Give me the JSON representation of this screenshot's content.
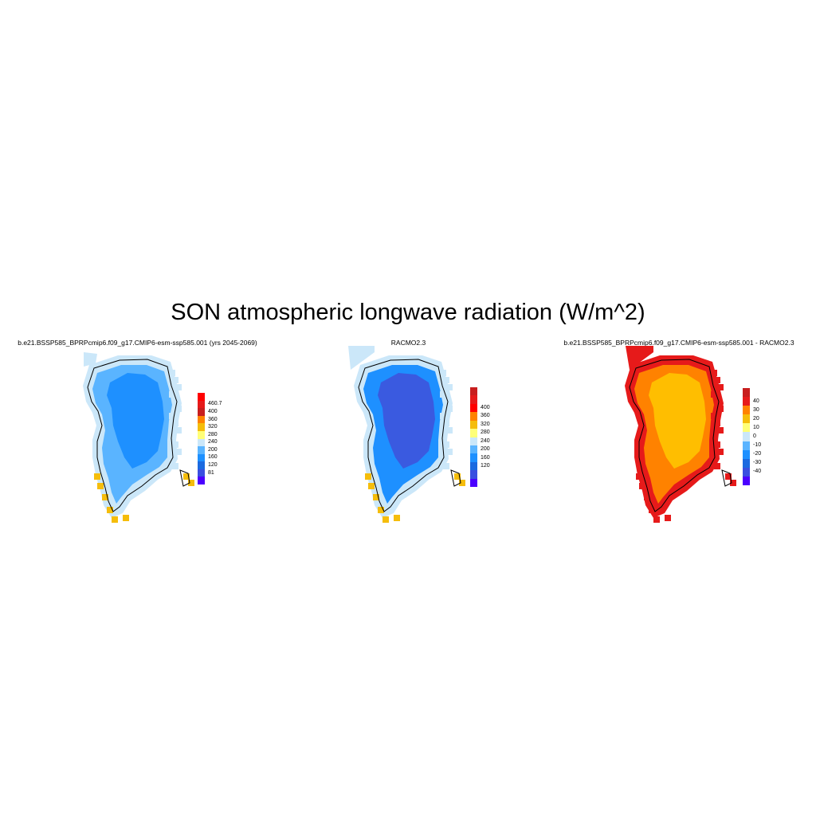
{
  "title": "SON atmospheric longwave radiation (W/m^2)",
  "panels": [
    {
      "title": "b.e21.BSSP585_BPRPcmip6.f09_g17.CMIP6-esm-ssp585.001 (yrs 2045-2069)",
      "colorbar": {
        "colors": [
          "#ff0000",
          "#e61a1a",
          "#c81e1e",
          "#ff8200",
          "#f5bd0b",
          "#ffff78",
          "#cbe7f9",
          "#5ab4ff",
          "#1e90ff",
          "#1b6ae0",
          "#3a4fe0",
          "#4b00ff"
        ],
        "labels": [
          "460.7",
          "400",
          "360",
          "320",
          "280",
          "240",
          "200",
          "160",
          "120",
          "81"
        ]
      },
      "palette": {
        "interior": "#1e90ff",
        "mid": "#5ab4ff",
        "edge": "#cbe7f9",
        "margin": "#cbe7f9",
        "coast_warm": "#f5bd0b"
      }
    },
    {
      "title": "RACMO2.3",
      "colorbar": {
        "colors": [
          "#c81e1e",
          "#e61a1a",
          "#ff0000",
          "#ff8200",
          "#f5bd0b",
          "#ffff78",
          "#cbe7f9",
          "#5ab4ff",
          "#1e90ff",
          "#1b6ae0",
          "#3a4fe0",
          "#4b00ff"
        ],
        "labels": [
          "400",
          "360",
          "320",
          "280",
          "240",
          "200",
          "160",
          "120"
        ]
      },
      "palette": {
        "interior": "#3a5ae0",
        "mid": "#1e90ff",
        "edge": "#5ab4ff",
        "margin": "#cbe7f9",
        "coast_warm": "#f5bd0b"
      }
    },
    {
      "title": "b.e21.BSSP585_BPRPcmip6.f09_g17.CMIP6-esm-ssp585.001 - RACMO2.3",
      "colorbar": {
        "colors": [
          "#c81e1e",
          "#e61a1a",
          "#ff8200",
          "#f5bd0b",
          "#ffff78",
          "#cbe7f9",
          "#5ab4ff",
          "#1e90ff",
          "#1b6ae0",
          "#3a4fe0",
          "#4b00ff"
        ],
        "labels": [
          "40",
          "30",
          "20",
          "10",
          "0",
          "-10",
          "-20",
          "-30",
          "-40"
        ]
      },
      "palette": {
        "interior": "#ffbe00",
        "mid": "#ff8200",
        "edge": "#ff8200",
        "margin": "#e61a1a",
        "coast_warm": "#e61a1a"
      }
    }
  ]
}
